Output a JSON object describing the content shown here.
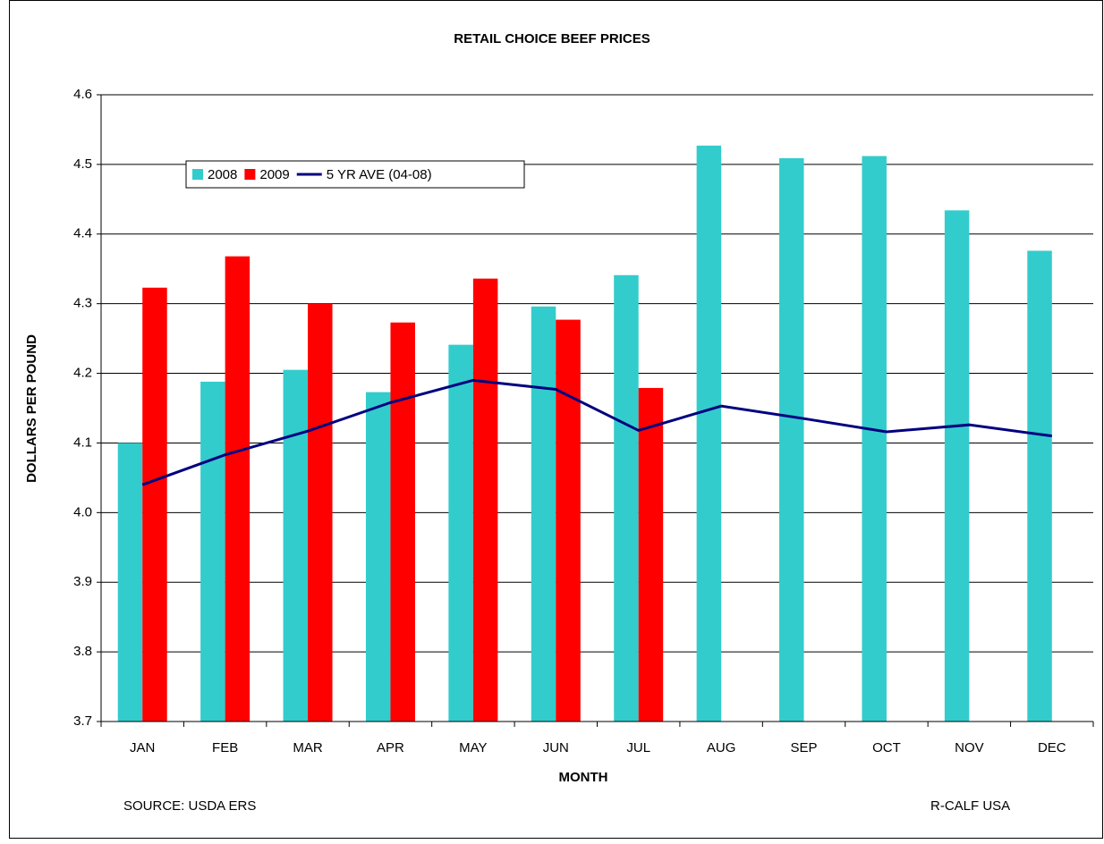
{
  "chart_data": {
    "type": "bar",
    "title": "RETAIL CHOICE BEEF PRICES",
    "x_label": "MONTH",
    "y_label": "DOLLARS PER POUND",
    "source": "SOURCE:  USDA ERS",
    "credit": "R-CALF USA",
    "categories": [
      "JAN",
      "FEB",
      "MAR",
      "APR",
      "MAY",
      "JUN",
      "JUL",
      "AUG",
      "SEP",
      "OCT",
      "NOV",
      "DEC"
    ],
    "series": [
      {
        "name": "2008",
        "type": "bar",
        "color": "#33cccc",
        "values": [
          4.1,
          4.188,
          4.205,
          4.173,
          4.241,
          4.296,
          4.341,
          4.527,
          4.509,
          4.512,
          4.434,
          4.376
        ]
      },
      {
        "name": "2009",
        "type": "bar",
        "color": "#ff0000",
        "values": [
          4.323,
          4.368,
          4.3,
          4.273,
          4.336,
          4.277,
          4.179,
          null,
          null,
          null,
          null,
          null
        ]
      },
      {
        "name": "5 YR AVE (04-08)",
        "type": "line",
        "color": "#000080",
        "values": [
          4.04,
          4.083,
          4.117,
          4.158,
          4.19,
          4.177,
          4.118,
          4.153,
          4.135,
          4.116,
          4.126,
          4.11
        ]
      }
    ],
    "ylim": [
      3.7,
      4.6
    ],
    "yticks": [
      3.7,
      3.8,
      3.9,
      {
        "value": 4,
        "label": "4.0"
      },
      4.1,
      4.2,
      4.3,
      4.4,
      4.5,
      4.6
    ],
    "grid": true
  }
}
